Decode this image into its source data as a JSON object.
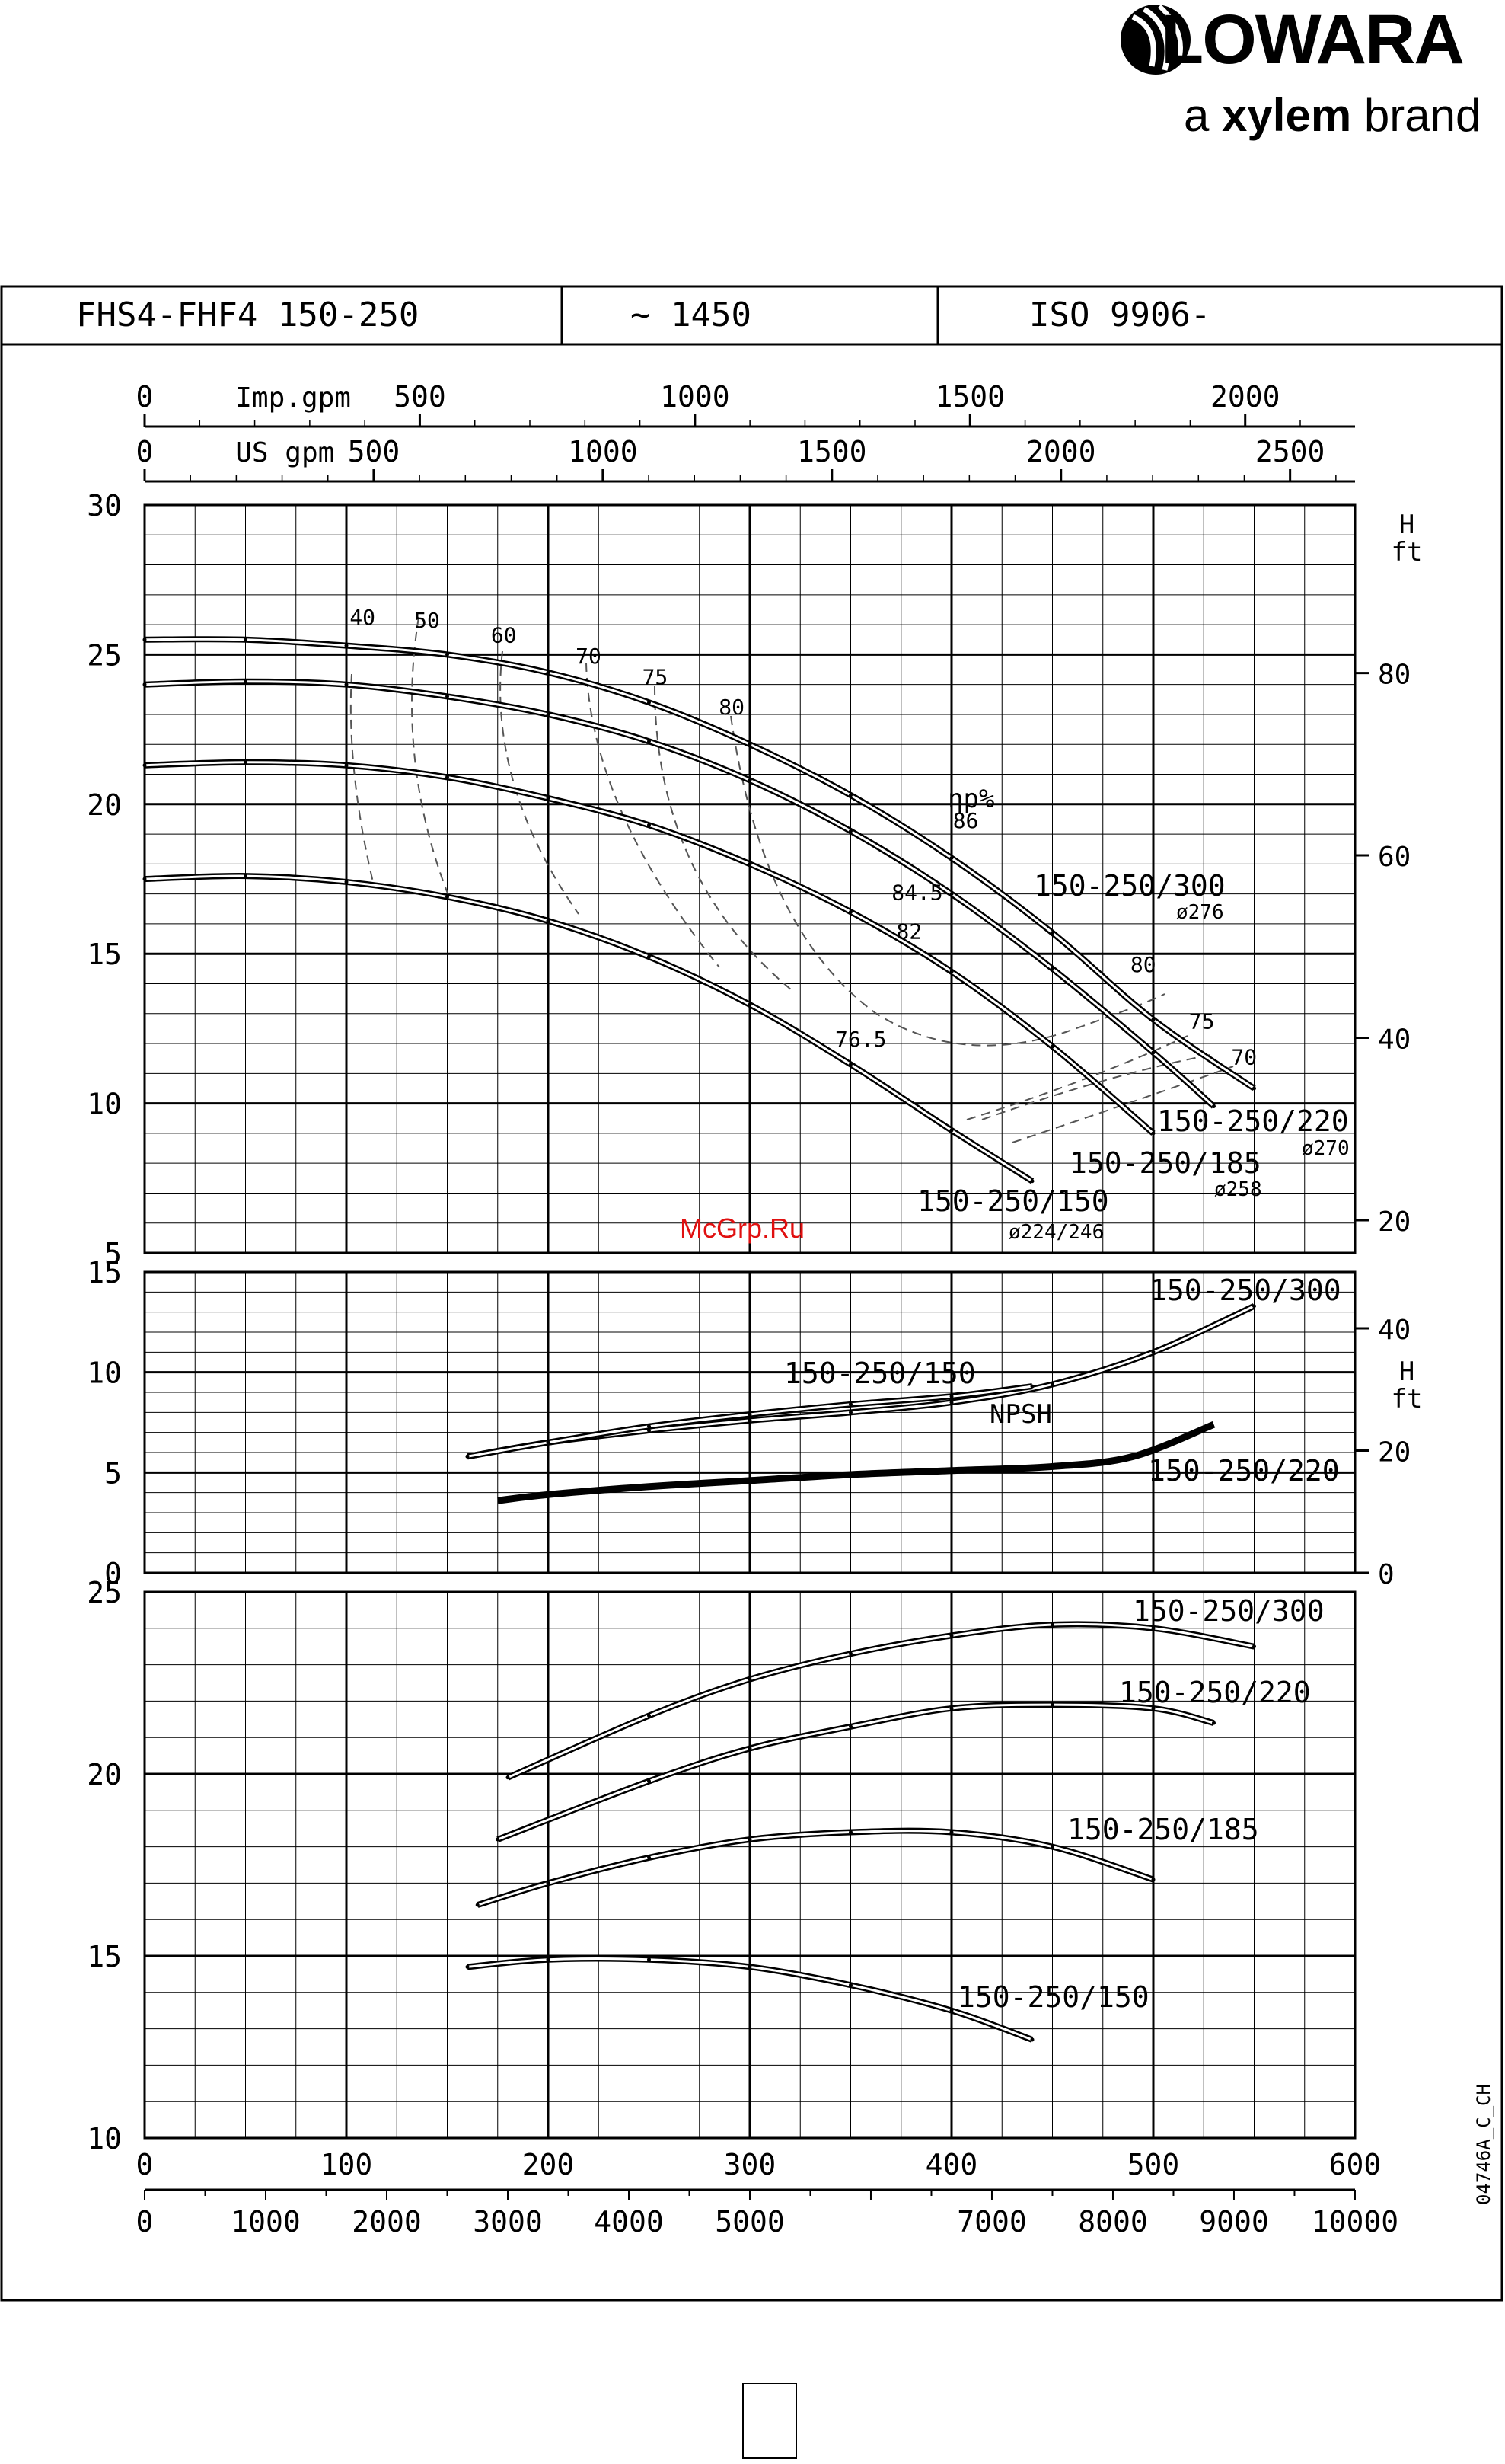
{
  "brand": {
    "name": "LOWARA",
    "tagline_prefix": "a ",
    "tagline_bold": "xylem",
    "tagline_suffix": " brand"
  },
  "header": {
    "model": "FHS4-FHF4 150-250",
    "speed": "~ 1450",
    "standard": "ISO 9906-"
  },
  "watermark": "McGrp.Ru",
  "doc_code": "04746A_C_CH",
  "chart_data": [
    {
      "id": "head",
      "type": "line",
      "x_units": "m3/h",
      "xlim": [
        0,
        600
      ],
      "ylim": [
        5,
        30
      ],
      "y_ticks": [
        5,
        10,
        15,
        20,
        25,
        30
      ],
      "ylabel_right": "H ft",
      "top_axes": [
        {
          "name": "Imp.gpm",
          "factor": 3.666,
          "ticks": [
            0,
            500,
            1000,
            1500,
            2000
          ],
          "labels": [
            "0",
            "500",
            "1000",
            "1500",
            "2000"
          ]
        },
        {
          "name": "US gpm",
          "factor": 4.403,
          "ticks": [
            0,
            500,
            1000,
            1500,
            2000,
            2500
          ],
          "labels": [
            "0",
            "500",
            "1000",
            "1500",
            "2000",
            "2500"
          ]
        }
      ],
      "right_ticks": [
        20,
        40,
        60,
        80
      ],
      "efficiency_label": "ηp%",
      "series": [
        {
          "name": "150-250/300",
          "diameter": "ø276",
          "x": [
            0,
            50,
            100,
            150,
            200,
            250,
            300,
            350,
            400,
            450,
            500,
            550
          ],
          "y": [
            25.5,
            25.5,
            25.3,
            25.0,
            24.4,
            23.4,
            22.0,
            20.3,
            18.2,
            15.7,
            12.8,
            10.5
          ]
        },
        {
          "name": "150-250/220",
          "diameter": "ø270",
          "x": [
            0,
            50,
            100,
            150,
            200,
            250,
            300,
            350,
            400,
            450,
            500,
            530
          ],
          "y": [
            24.0,
            24.1,
            24.0,
            23.6,
            23.0,
            22.1,
            20.8,
            19.1,
            17.0,
            14.5,
            11.7,
            9.9
          ]
        },
        {
          "name": "150-250/185",
          "diameter": "ø258",
          "x": [
            0,
            50,
            100,
            150,
            200,
            250,
            300,
            350,
            400,
            450,
            500
          ],
          "y": [
            21.3,
            21.4,
            21.3,
            20.9,
            20.2,
            19.3,
            18.0,
            16.4,
            14.4,
            11.9,
            9.0
          ]
        },
        {
          "name": "150-250/150",
          "diameter": "ø224/246",
          "x": [
            0,
            50,
            100,
            150,
            200,
            250,
            300,
            350,
            400,
            440
          ],
          "y": [
            17.5,
            17.6,
            17.4,
            16.9,
            16.1,
            14.9,
            13.3,
            11.3,
            9.1,
            7.4
          ]
        }
      ],
      "efficiency_labels": [
        {
          "label": "40",
          "x": 108,
          "y": 26.0
        },
        {
          "label": "50",
          "x": 140,
          "y": 25.9
        },
        {
          "label": "60",
          "x": 178,
          "y": 25.4
        },
        {
          "label": "70",
          "x": 220,
          "y": 24.7
        },
        {
          "label": "75",
          "x": 253,
          "y": 24.0
        },
        {
          "label": "80",
          "x": 291,
          "y": 23.0
        },
        {
          "label": "86",
          "x": 407,
          "y": 19.2
        },
        {
          "label": "84.5",
          "x": 383,
          "y": 16.8
        },
        {
          "label": "82",
          "x": 379,
          "y": 15.5
        },
        {
          "label": "76.5",
          "x": 355,
          "y": 11.9
        },
        {
          "label": "80",
          "x": 495,
          "y": 14.4
        },
        {
          "label": "75",
          "x": 524,
          "y": 12.5
        },
        {
          "label": "70",
          "x": 545,
          "y": 11.3
        }
      ]
    },
    {
      "id": "npsh",
      "type": "line",
      "x_units": "m3/h",
      "xlim": [
        0,
        600
      ],
      "ylim": [
        0,
        15
      ],
      "y_ticks": [
        0,
        5,
        10,
        15
      ],
      "ylabel_right": "H ft",
      "right_ticks": [
        0,
        20,
        40
      ],
      "label": "NPSH",
      "series": [
        {
          "name": "150-250/300",
          "x": [
            160,
            200,
            250,
            300,
            350,
            400,
            450,
            500,
            550
          ],
          "y": [
            5.8,
            6.5,
            7.1,
            7.6,
            8.0,
            8.5,
            9.4,
            11.0,
            13.3
          ]
        },
        {
          "name": "150-250/150",
          "x": [
            160,
            200,
            250,
            300,
            350,
            400,
            440
          ],
          "y": [
            5.8,
            6.5,
            7.3,
            7.9,
            8.4,
            8.8,
            9.3
          ]
        },
        {
          "name": "150-250/220",
          "x": [
            175,
            200,
            250,
            300,
            350,
            400,
            450,
            490,
            530
          ],
          "y": [
            3.6,
            3.9,
            4.3,
            4.6,
            4.9,
            5.1,
            5.3,
            5.8,
            7.4
          ]
        }
      ]
    },
    {
      "id": "power",
      "type": "line",
      "x_units": "m3/h",
      "xlim": [
        0,
        600
      ],
      "ylim": [
        10,
        25
      ],
      "y_ticks": [
        10,
        15,
        20,
        25
      ],
      "x_ticks": [
        0,
        100,
        200,
        300,
        400,
        500,
        600
      ],
      "bottom_axis_l_min": {
        "factor": 16.667,
        "ticks": [
          0,
          1000,
          2000,
          3000,
          4000,
          5000,
          7000,
          8000,
          9000,
          10000
        ],
        "labels": [
          "0",
          "1000",
          "2000",
          "3000",
          "4000",
          "5000",
          "7000",
          "8000",
          "9000",
          "10000"
        ]
      },
      "series": [
        {
          "name": "150-250/300",
          "x": [
            180,
            250,
            300,
            350,
            400,
            450,
            500,
            550
          ],
          "y": [
            19.9,
            21.6,
            22.6,
            23.3,
            23.8,
            24.1,
            24.0,
            23.5
          ]
        },
        {
          "name": "150-250/220",
          "x": [
            175,
            250,
            300,
            350,
            400,
            450,
            500,
            530
          ],
          "y": [
            18.2,
            19.8,
            20.7,
            21.3,
            21.8,
            21.9,
            21.8,
            21.4
          ]
        },
        {
          "name": "150-250/185",
          "x": [
            165,
            200,
            250,
            300,
            350,
            400,
            450,
            500
          ],
          "y": [
            16.4,
            17.0,
            17.7,
            18.2,
            18.4,
            18.4,
            18.0,
            17.1
          ]
        },
        {
          "name": "150-250/150",
          "x": [
            160,
            200,
            250,
            300,
            350,
            400,
            440
          ],
          "y": [
            14.7,
            14.9,
            14.9,
            14.7,
            14.2,
            13.5,
            12.7
          ]
        }
      ]
    }
  ],
  "colors": {
    "line": "#000000",
    "grid": "#000000",
    "dash": "#555555",
    "watermark": "#e01010"
  }
}
